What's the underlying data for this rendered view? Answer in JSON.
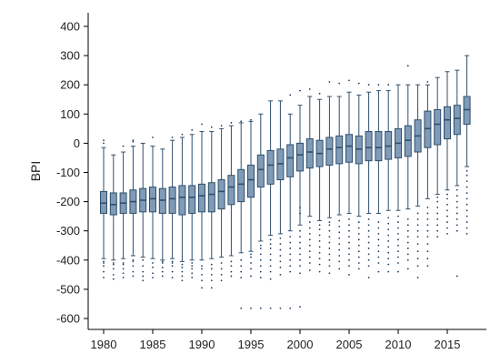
{
  "chart_data": {
    "type": "box",
    "title": "",
    "xlabel": "",
    "ylabel": "BPI",
    "ylim": [
      -650,
      450
    ],
    "yticks": [
      400,
      300,
      200,
      100,
      0,
      -100,
      -200,
      -300,
      -400,
      -500,
      -600
    ],
    "xticks": [
      1980,
      1985,
      1990,
      1995,
      2000,
      2005,
      2010,
      2015
    ],
    "grid": false,
    "colors": {
      "box_fill": "#7f9bb7",
      "box_stroke": "#2f4f6b",
      "outlier": "#1f3f5f"
    },
    "boxes": [
      {
        "year": 1980,
        "q1": -240,
        "median": -205,
        "q3": -165,
        "whisker_low": -395,
        "whisker_high": -15,
        "outliers": [
          -460,
          -440,
          -420,
          -410,
          -405,
          10,
          0
        ]
      },
      {
        "year": 1981,
        "q1": -245,
        "median": -210,
        "q3": -170,
        "whisker_low": -400,
        "whisker_high": -40,
        "outliers": [
          -465,
          -450,
          -430,
          -415,
          -410
        ]
      },
      {
        "year": 1982,
        "q1": -240,
        "median": -205,
        "q3": -170,
        "whisker_low": -395,
        "whisker_high": -30,
        "outliers": [
          -460,
          -445,
          -430,
          -415,
          -410,
          -10
        ]
      },
      {
        "year": 1983,
        "q1": -240,
        "median": -200,
        "q3": -160,
        "whisker_low": -385,
        "whisker_high": -10,
        "outliers": [
          -455,
          -440,
          -420,
          -405,
          -400,
          10,
          5
        ]
      },
      {
        "year": 1984,
        "q1": -235,
        "median": -195,
        "q3": -155,
        "whisker_low": -390,
        "whisker_high": 0,
        "outliers": [
          -470,
          -455,
          -440,
          -420,
          -400
        ]
      },
      {
        "year": 1985,
        "q1": -235,
        "median": -190,
        "q3": -150,
        "whisker_low": -395,
        "whisker_high": -10,
        "outliers": [
          -460,
          -445,
          -425,
          -410,
          20
        ]
      },
      {
        "year": 1986,
        "q1": -240,
        "median": -195,
        "q3": -155,
        "whisker_low": -400,
        "whisker_high": -20,
        "outliers": [
          -455,
          -440,
          -425,
          -410,
          -405
        ]
      },
      {
        "year": 1987,
        "q1": -240,
        "median": -190,
        "q3": -150,
        "whisker_low": -395,
        "whisker_high": 10,
        "outliers": [
          -460,
          -440,
          -420,
          -410,
          -405,
          20
        ]
      },
      {
        "year": 1988,
        "q1": -245,
        "median": -185,
        "q3": -145,
        "whisker_low": -405,
        "whisker_high": 20,
        "outliers": [
          -470,
          -455,
          -440,
          -425,
          -415,
          30
        ]
      },
      {
        "year": 1989,
        "q1": -240,
        "median": -185,
        "q3": -145,
        "whisker_low": -400,
        "whisker_high": 30,
        "outliers": [
          -460,
          -445,
          -430,
          -420,
          -410,
          45
        ]
      },
      {
        "year": 1990,
        "q1": -235,
        "median": -180,
        "q3": -140,
        "whisker_low": -400,
        "whisker_high": 40,
        "outliers": [
          -495,
          -470,
          -450,
          -430,
          -420,
          65
        ]
      },
      {
        "year": 1991,
        "q1": -235,
        "median": -175,
        "q3": -135,
        "whisker_low": -395,
        "whisker_high": 40,
        "outliers": [
          -495,
          -470,
          -450,
          -430,
          -415,
          55
        ]
      },
      {
        "year": 1992,
        "q1": -225,
        "median": -165,
        "q3": -125,
        "whisker_low": -390,
        "whisker_high": 50,
        "outliers": [
          -470,
          -450,
          -430,
          -410,
          60
        ]
      },
      {
        "year": 1993,
        "q1": -210,
        "median": -150,
        "q3": -110,
        "whisker_low": -385,
        "whisker_high": 60,
        "outliers": [
          -455,
          -440,
          -420,
          -405,
          70
        ]
      },
      {
        "year": 1994,
        "q1": -200,
        "median": -140,
        "q3": -90,
        "whisker_low": -375,
        "whisker_high": 70,
        "outliers": [
          -565,
          -460,
          -440,
          -420,
          -400,
          75
        ]
      },
      {
        "year": 1995,
        "q1": -185,
        "median": -125,
        "q3": -75,
        "whisker_low": -370,
        "whisker_high": 75,
        "outliers": [
          -565,
          -455,
          -430,
          -410,
          -390,
          -380,
          80
        ]
      },
      {
        "year": 1996,
        "q1": -150,
        "median": -90,
        "q3": -40,
        "whisker_low": -335,
        "whisker_high": 100,
        "outliers": [
          -565,
          -460,
          -440,
          -420,
          -400,
          -380,
          -360,
          -350
        ]
      },
      {
        "year": 1997,
        "q1": -140,
        "median": -75,
        "q3": -25,
        "whisker_low": -315,
        "whisker_high": 145,
        "outliers": [
          -565,
          -465,
          -440,
          -420,
          -400,
          -380,
          -360,
          -345,
          -330
        ]
      },
      {
        "year": 1998,
        "q1": -125,
        "median": -70,
        "q3": -20,
        "whisker_low": -310,
        "whisker_high": 145,
        "outliers": [
          -565,
          -450,
          -425,
          -405,
          -385,
          -365,
          -345,
          -325
        ]
      },
      {
        "year": 1999,
        "q1": -115,
        "median": -50,
        "q3": -5,
        "whisker_low": -300,
        "whisker_high": 100,
        "outliers": [
          -565,
          -440,
          -420,
          -400,
          -380,
          -360,
          -340,
          -320,
          165
        ]
      },
      {
        "year": 2000,
        "q1": -95,
        "median": -40,
        "q3": 0,
        "whisker_low": -280,
        "whisker_high": 130,
        "outliers": [
          -560,
          -445,
          -420,
          -400,
          -380,
          -360,
          -340,
          -320,
          -300,
          -240,
          -220,
          180
        ]
      },
      {
        "year": 2001,
        "q1": -85,
        "median": -30,
        "q3": 15,
        "whisker_low": -250,
        "whisker_high": 160,
        "outliers": [
          -435,
          -410,
          -390,
          -370,
          -350,
          -330,
          -310,
          -290,
          -270,
          185
        ]
      },
      {
        "year": 2002,
        "q1": -80,
        "median": -35,
        "q3": 10,
        "whisker_low": -265,
        "whisker_high": 150,
        "outliers": [
          -440,
          -415,
          -395,
          -375,
          -355,
          -335,
          -315,
          -295,
          -280,
          170
        ]
      },
      {
        "year": 2003,
        "q1": -75,
        "median": -20,
        "q3": 20,
        "whisker_low": -255,
        "whisker_high": 160,
        "outliers": [
          -445,
          -420,
          -400,
          -380,
          -360,
          -340,
          -320,
          -300,
          -280,
          -270,
          210
        ]
      },
      {
        "year": 2004,
        "q1": -70,
        "median": -15,
        "q3": 25,
        "whisker_low": -245,
        "whisker_high": 160,
        "outliers": [
          -430,
          -405,
          -385,
          -365,
          -345,
          -325,
          -305,
          -285,
          -265,
          205
        ]
      },
      {
        "year": 2005,
        "q1": -65,
        "median": -10,
        "q3": 30,
        "whisker_low": -240,
        "whisker_high": 175,
        "outliers": [
          -450,
          -420,
          -400,
          -380,
          -360,
          -340,
          -320,
          -300,
          -280,
          -260,
          215
        ]
      },
      {
        "year": 2006,
        "q1": -70,
        "median": -20,
        "q3": 25,
        "whisker_low": -250,
        "whisker_high": 165,
        "outliers": [
          -430,
          -410,
          -390,
          -370,
          -350,
          -330,
          -310,
          -290,
          -270,
          205
        ]
      },
      {
        "year": 2007,
        "q1": -60,
        "median": -15,
        "q3": 40,
        "whisker_low": -240,
        "whisker_high": 175,
        "outliers": [
          -460,
          -420,
          -400,
          -380,
          -360,
          -340,
          -320,
          -300,
          -280,
          -260,
          200
        ]
      },
      {
        "year": 2008,
        "q1": -60,
        "median": -15,
        "q3": 40,
        "whisker_low": -240,
        "whisker_high": 180,
        "outliers": [
          -440,
          -410,
          -390,
          -370,
          -350,
          -330,
          -310,
          -290,
          -270,
          200
        ]
      },
      {
        "year": 2009,
        "q1": -55,
        "median": -10,
        "q3": 40,
        "whisker_low": -230,
        "whisker_high": 180,
        "outliers": [
          -440,
          -415,
          -395,
          -375,
          -355,
          -335,
          -315,
          -295,
          -275,
          -255,
          200
        ]
      },
      {
        "year": 2010,
        "q1": -50,
        "median": 0,
        "q3": 50,
        "whisker_low": -230,
        "whisker_high": 200,
        "outliers": [
          -440,
          -410,
          -390,
          -370,
          -350,
          -330,
          -310,
          -290,
          -270,
          -250
        ]
      },
      {
        "year": 2011,
        "q1": -45,
        "median": 10,
        "q3": 60,
        "whisker_low": -225,
        "whisker_high": 200,
        "outliers": [
          -430,
          -400,
          -380,
          -360,
          -340,
          -320,
          -300,
          -280,
          -260,
          265
        ]
      },
      {
        "year": 2012,
        "q1": -30,
        "median": 25,
        "q3": 80,
        "whisker_low": -215,
        "whisker_high": 200,
        "outliers": [
          -460,
          -420,
          -395,
          -370,
          -345,
          -320,
          -300,
          -280,
          -260,
          -240
        ]
      },
      {
        "year": 2013,
        "q1": -15,
        "median": 50,
        "q3": 110,
        "whisker_low": -190,
        "whisker_high": 200,
        "outliers": [
          -420,
          -395,
          -370,
          -345,
          -320,
          -300,
          -280,
          -260,
          -240,
          -220,
          210
        ]
      },
      {
        "year": 2014,
        "q1": -5,
        "median": 65,
        "q3": 115,
        "whisker_low": -175,
        "whisker_high": 225,
        "outliers": [
          -320,
          -300,
          -280,
          -260,
          -240,
          -220,
          -200,
          -185
        ]
      },
      {
        "year": 2015,
        "q1": 15,
        "median": 80,
        "q3": 125,
        "whisker_low": -160,
        "whisker_high": 245,
        "outliers": [
          -310,
          -290,
          -270,
          -250,
          -230,
          -210,
          -190,
          -175
        ]
      },
      {
        "year": 2016,
        "q1": 30,
        "median": 85,
        "q3": 130,
        "whisker_low": -145,
        "whisker_high": 250,
        "outliers": [
          -455,
          -300,
          -280,
          -260,
          -240,
          -220,
          -200,
          -180,
          -160
        ]
      },
      {
        "year": 2017,
        "q1": 65,
        "median": 115,
        "q3": 160,
        "whisker_low": -80,
        "whisker_high": 300,
        "outliers": [
          -310,
          -290,
          -270,
          -250,
          -230,
          -210,
          -190,
          -170,
          -150,
          -130,
          -110,
          -95
        ]
      }
    ]
  }
}
